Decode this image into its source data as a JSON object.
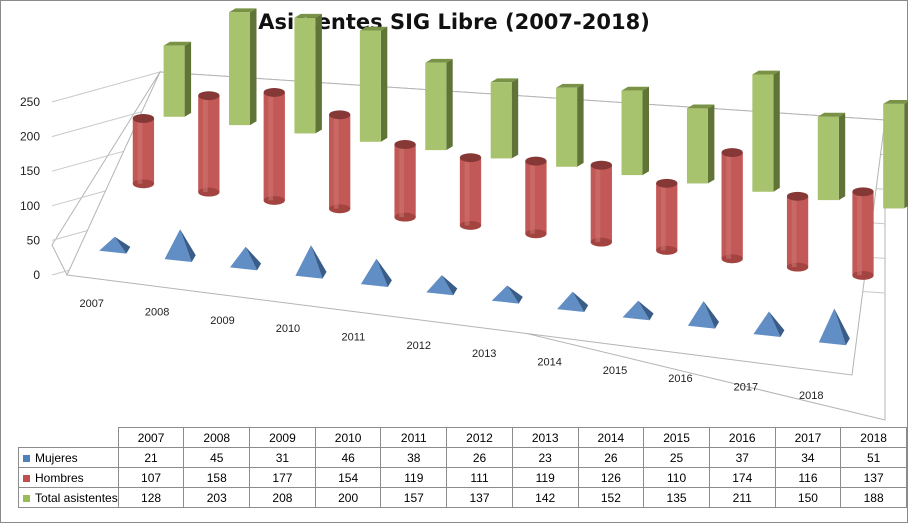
{
  "chart_data": {
    "type": "bar",
    "variant": "3d-column",
    "title": "Asistentes SIG Libre (2007-2018)",
    "categories": [
      "2007",
      "2008",
      "2009",
      "2010",
      "2011",
      "2012",
      "2013",
      "2014",
      "2015",
      "2016",
      "2017",
      "2018"
    ],
    "series": [
      {
        "name": "Mujeres",
        "shape": "pyramid",
        "color": "#4f81bd",
        "values": [
          21,
          45,
          31,
          46,
          38,
          26,
          23,
          26,
          25,
          37,
          34,
          51
        ]
      },
      {
        "name": "Hombres",
        "shape": "cylinder",
        "color": "#c0504d",
        "values": [
          107,
          158,
          177,
          154,
          119,
          111,
          119,
          126,
          110,
          174,
          116,
          137
        ]
      },
      {
        "name": "Total asistentes",
        "shape": "box",
        "color": "#9bbb59",
        "values": [
          128,
          203,
          208,
          200,
          157,
          137,
          142,
          152,
          135,
          211,
          150,
          188
        ]
      }
    ],
    "yticks": [
      "0",
      "50",
      "100",
      "150",
      "200",
      "250"
    ],
    "ylim": [
      0,
      250
    ],
    "grid": true,
    "legend": "data-table"
  }
}
